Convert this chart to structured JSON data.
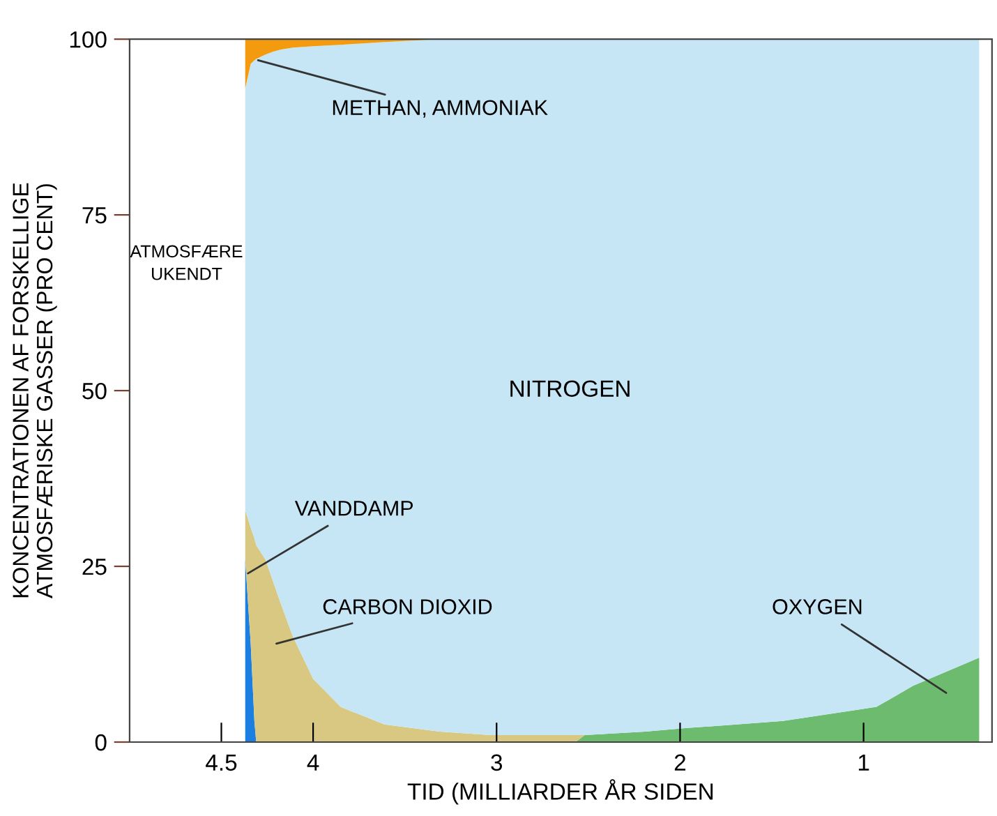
{
  "chart_data": {
    "type": "area",
    "stacked": true,
    "xlabel": "TID (MILLIARDER ÅR SIDEN",
    "ylabel": "KONCENTRATIONEN AF FORSKELLIGE\nATMOSFÆRISKE GASSER (PRO CENT)",
    "x": [
      4.37,
      4.34,
      4.32,
      4.31,
      4.26,
      4.22,
      4.18,
      4.11,
      4.0,
      3.85,
      3.61,
      3.31,
      3.03,
      2.57,
      2.52,
      2.19,
      1.96,
      1.44,
      0.93,
      0.73,
      0.37
    ],
    "series": [
      {
        "name": "OXYGEN",
        "color": "#6dbb6e",
        "values": [
          0,
          0,
          0,
          0,
          0,
          0,
          0,
          0,
          0,
          0,
          0,
          0,
          0,
          0,
          1,
          1.5,
          2,
          3,
          5,
          8,
          12
        ]
      },
      {
        "name": "VANDDAMP",
        "color": "#1a7fe0",
        "values": [
          26,
          14,
          3,
          0,
          0,
          0,
          0,
          0,
          0,
          0,
          0,
          0,
          0,
          0,
          0,
          0,
          0,
          0,
          0,
          0,
          0
        ]
      },
      {
        "name": "CARBON DIOXID",
        "color": "#d8c882",
        "values": [
          7,
          16.5,
          26,
          28,
          26,
          23,
          20,
          15,
          9,
          5,
          2.5,
          1.5,
          1,
          1,
          0,
          0,
          0,
          0,
          0,
          0,
          0
        ]
      },
      {
        "name": "NITROGEN",
        "color": "#c6e6f6",
        "values": [
          60,
          66,
          68,
          69.2,
          71.8,
          75.2,
          78.5,
          83.8,
          90,
          94.2,
          97.1,
          98.5,
          99,
          99,
          99,
          98.5,
          98,
          97,
          95,
          92,
          88
        ]
      },
      {
        "name": "METHAN, AMMONIAK",
        "color": "#f39a0e",
        "values": [
          7,
          3.5,
          3,
          2.8,
          2.2,
          1.8,
          1.5,
          1.2,
          1,
          0.8,
          0.4,
          0,
          0,
          0,
          0,
          0,
          0,
          0,
          0,
          0,
          0
        ]
      }
    ],
    "annotations": [
      "ATMOSFÆRE\nUKENDT"
    ],
    "xlim": [
      5.0,
      0.3
    ],
    "ylim": [
      0,
      100
    ],
    "xticks": [
      4.5,
      4,
      3,
      2,
      1
    ],
    "yticks": [
      0,
      25,
      50,
      75,
      100
    ],
    "grid": false,
    "legend": false
  }
}
